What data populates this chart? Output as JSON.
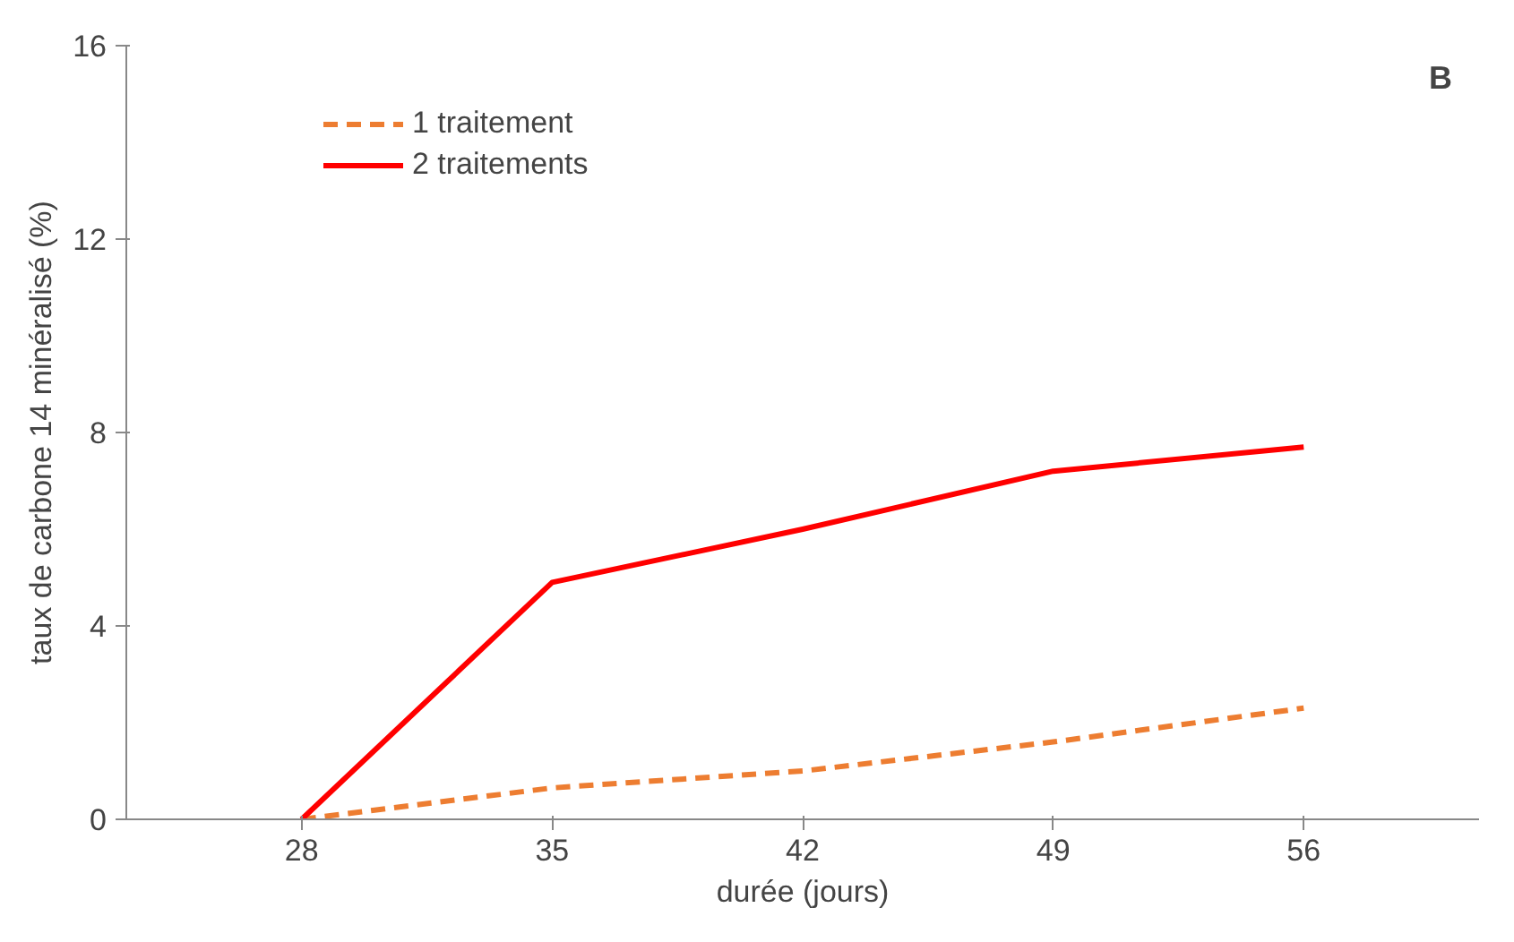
{
  "chart_data": {
    "type": "line",
    "xlabel": "durée (jours)",
    "ylabel": "taux de carbone 14 minéralisé (%)",
    "categories": [
      "28",
      "35",
      "42",
      "49",
      "56"
    ],
    "series": [
      {
        "name": "1 traitement",
        "color": "#ed7d31",
        "line_style": "dashed",
        "values": [
          0,
          0.65,
          1.0,
          1.6,
          2.3
        ]
      },
      {
        "name": "2 traitements",
        "color": "#ff0000",
        "line_style": "solid",
        "values": [
          0,
          4.9,
          6.0,
          7.2,
          7.7
        ]
      }
    ],
    "ylim": [
      0,
      16
    ],
    "yticks": [
      0,
      4,
      8,
      12,
      16
    ],
    "grid": false,
    "legend": "top left",
    "marker": "none",
    "annotations": [
      "B"
    ]
  }
}
